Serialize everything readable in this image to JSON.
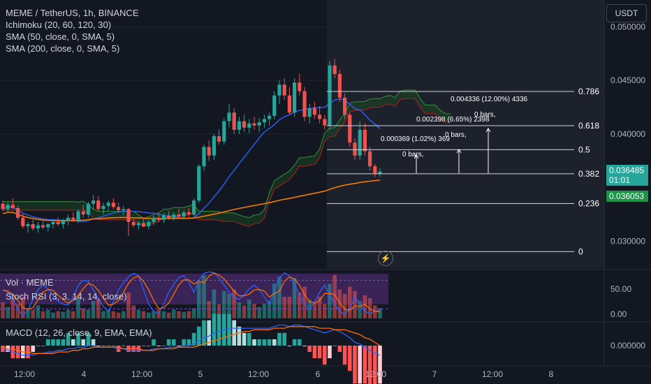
{
  "legend": {
    "title": "MEME / TetherUS, 1h, BINANCE",
    "indicators": [
      "Ichimoku (20, 60, 120, 30)",
      "SMA (50, close, 0, SMA, 5)",
      "SMA (200, close, 0, SMA, 5)"
    ]
  },
  "currency_button": "USDT",
  "colors": {
    "bg": "#131722",
    "up": "#26a69a",
    "down": "#ef5350",
    "sma50": "#2962ff",
    "sma200": "#f57c00",
    "axis_text": "#b2b5be",
    "rsi_band": "#4a2a6e"
  },
  "price_axis": {
    "ticks": [
      "0.050000",
      "0.045000",
      "0.040000",
      "0.030000"
    ]
  },
  "time_axis": {
    "ticks": [
      "12:00",
      "4",
      "12:00",
      "5",
      "12:00",
      "6",
      "12:00",
      "7",
      "12:00",
      "8"
    ]
  },
  "price_tags": {
    "last_price": "0.036485",
    "countdown": "01:01",
    "ichimoku_price": "0.036053"
  },
  "fib": {
    "levels": [
      {
        "ratio": "0.786",
        "price": 0.04397
      },
      {
        "ratio": "0.618",
        "price": 0.04078
      },
      {
        "ratio": "0.5",
        "price": 0.03854
      },
      {
        "ratio": "0.382",
        "price": 0.0363
      },
      {
        "ratio": "0.236",
        "price": 0.03352
      },
      {
        "ratio": "0",
        "price": 0.02904
      }
    ]
  },
  "measurements": [
    {
      "label": "0.000369 (1.02%) 369",
      "bars": "0 bars,"
    },
    {
      "label": "0.002398 (6.65%) 2398",
      "bars": "0 bars,"
    },
    {
      "label": "0.004336 (12.00%) 4336",
      "bars": "0 bars,"
    }
  ],
  "panes": {
    "volume_label": "Vol · MEME",
    "rsi_label": "Stoch RSI (3, 3, 14, 14, close)",
    "rsi_ticks": [
      "50.00",
      "0.00"
    ],
    "macd_label": "MACD (12, 26, close, 9, EMA, EMA)",
    "macd_ticks": [
      "0.000000"
    ]
  },
  "chart_data": {
    "type": "candlestick",
    "title": "MEME / TetherUS, 1h, BINANCE",
    "ylim": [
      0.0275,
      0.0525
    ],
    "candles": [
      [
        0.0335,
        0.0338,
        0.0328,
        0.033
      ],
      [
        0.033,
        0.0336,
        0.0327,
        0.0334
      ],
      [
        0.0334,
        0.034,
        0.033,
        0.0331
      ],
      [
        0.0331,
        0.0333,
        0.032,
        0.0322
      ],
      [
        0.0322,
        0.0326,
        0.0312,
        0.0314
      ],
      [
        0.0314,
        0.0318,
        0.0308,
        0.0316
      ],
      [
        0.0316,
        0.032,
        0.031,
        0.0312
      ],
      [
        0.0312,
        0.0318,
        0.0308,
        0.0315
      ],
      [
        0.0315,
        0.0319,
        0.0311,
        0.0313
      ],
      [
        0.0313,
        0.0317,
        0.0309,
        0.0316
      ],
      [
        0.0316,
        0.032,
        0.0312,
        0.0318
      ],
      [
        0.0318,
        0.0322,
        0.0314,
        0.0316
      ],
      [
        0.0316,
        0.0321,
        0.0312,
        0.0319
      ],
      [
        0.0319,
        0.0325,
        0.0315,
        0.0322
      ],
      [
        0.0322,
        0.0327,
        0.0318,
        0.032
      ],
      [
        0.032,
        0.033,
        0.0317,
        0.0328
      ],
      [
        0.0328,
        0.0334,
        0.0322,
        0.0325
      ],
      [
        0.0325,
        0.0337,
        0.0322,
        0.0335
      ],
      [
        0.0335,
        0.0343,
        0.033,
        0.0338
      ],
      [
        0.0338,
        0.0342,
        0.0328,
        0.033
      ],
      [
        0.033,
        0.0336,
        0.0325,
        0.0333
      ],
      [
        0.0333,
        0.0338,
        0.0328,
        0.0336
      ],
      [
        0.0336,
        0.034,
        0.033,
        0.0332
      ],
      [
        0.0332,
        0.0336,
        0.0327,
        0.0329
      ],
      [
        0.0329,
        0.0333,
        0.0324,
        0.033
      ],
      [
        0.033,
        0.0331,
        0.0305,
        0.0318
      ],
      [
        0.0318,
        0.0321,
        0.0313,
        0.0315
      ],
      [
        0.0315,
        0.0319,
        0.0311,
        0.0317
      ],
      [
        0.0317,
        0.0321,
        0.0313,
        0.0314
      ],
      [
        0.0314,
        0.032,
        0.0311,
        0.0318
      ],
      [
        0.0318,
        0.0324,
        0.0315,
        0.0322
      ],
      [
        0.0322,
        0.0326,
        0.0318,
        0.032
      ],
      [
        0.032,
        0.0326,
        0.0317,
        0.0324
      ],
      [
        0.0324,
        0.0328,
        0.032,
        0.0322
      ],
      [
        0.0322,
        0.0327,
        0.0319,
        0.0325
      ],
      [
        0.0325,
        0.033,
        0.0321,
        0.0323
      ],
      [
        0.0323,
        0.0329,
        0.032,
        0.0327
      ],
      [
        0.0327,
        0.0331,
        0.0322,
        0.0325
      ],
      [
        0.0325,
        0.034,
        0.0323,
        0.0338
      ],
      [
        0.0338,
        0.0372,
        0.0336,
        0.037
      ],
      [
        0.037,
        0.039,
        0.0366,
        0.0388
      ],
      [
        0.0388,
        0.0394,
        0.0375,
        0.038
      ],
      [
        0.038,
        0.04,
        0.0376,
        0.0398
      ],
      [
        0.0398,
        0.0404,
        0.039,
        0.0393
      ],
      [
        0.0393,
        0.0415,
        0.039,
        0.0412
      ],
      [
        0.0412,
        0.0428,
        0.0406,
        0.042
      ],
      [
        0.042,
        0.0424,
        0.04,
        0.0404
      ],
      [
        0.0404,
        0.0416,
        0.04,
        0.0412
      ],
      [
        0.0412,
        0.0418,
        0.0402,
        0.0406
      ],
      [
        0.0406,
        0.0414,
        0.0401,
        0.041
      ],
      [
        0.041,
        0.0416,
        0.0404,
        0.0408
      ],
      [
        0.0408,
        0.0415,
        0.0402,
        0.0411
      ],
      [
        0.0411,
        0.0418,
        0.0406,
        0.0414
      ],
      [
        0.0414,
        0.042,
        0.0408,
        0.0417
      ],
      [
        0.0417,
        0.044,
        0.0414,
        0.0436
      ],
      [
        0.0436,
        0.045,
        0.0428,
        0.0446
      ],
      [
        0.0446,
        0.0452,
        0.0432,
        0.0436
      ],
      [
        0.0436,
        0.0444,
        0.0418,
        0.042
      ],
      [
        0.042,
        0.0452,
        0.0416,
        0.0448
      ],
      [
        0.0448,
        0.0456,
        0.0436,
        0.044
      ],
      [
        0.044,
        0.0444,
        0.0412,
        0.0416
      ],
      [
        0.0416,
        0.0428,
        0.041,
        0.0424
      ],
      [
        0.0424,
        0.043,
        0.0414,
        0.0418
      ],
      [
        0.0418,
        0.0426,
        0.041,
        0.0414
      ],
      [
        0.0414,
        0.0418,
        0.0404,
        0.0408
      ],
      [
        0.0408,
        0.0468,
        0.0404,
        0.0464
      ],
      [
        0.0464,
        0.047,
        0.0452,
        0.0456
      ],
      [
        0.0456,
        0.046,
        0.043,
        0.0434
      ],
      [
        0.0434,
        0.0438,
        0.0414,
        0.0418
      ],
      [
        0.0418,
        0.042,
        0.0388,
        0.0392
      ],
      [
        0.0392,
        0.0396,
        0.0376,
        0.038
      ],
      [
        0.038,
        0.0412,
        0.0376,
        0.0404
      ],
      [
        0.0404,
        0.041,
        0.038,
        0.0384
      ],
      [
        0.0384,
        0.0388,
        0.0366,
        0.037
      ],
      [
        0.037,
        0.0372,
        0.036,
        0.0363
      ],
      [
        0.0363,
        0.0368,
        0.036,
        0.0365
      ]
    ],
    "volume": [
      22,
      16,
      26,
      20,
      30,
      14,
      12,
      18,
      10,
      12,
      8,
      10,
      9,
      12,
      10,
      28,
      14,
      12,
      24,
      26,
      10,
      12,
      10,
      8,
      10,
      36,
      18,
      12,
      10,
      8,
      10,
      12,
      10,
      8,
      12,
      10,
      9,
      10,
      14,
      50,
      60,
      24,
      40,
      20,
      38,
      34,
      40,
      22,
      18,
      26,
      20,
      16,
      20,
      24,
      48,
      58,
      30,
      30,
      56,
      36,
      44,
      26,
      22,
      30,
      20,
      48,
      60,
      40,
      34,
      44,
      38,
      24,
      32,
      28,
      18,
      14
    ],
    "rsi": [
      60,
      55,
      40,
      20,
      5,
      18,
      40,
      60,
      70,
      62,
      48,
      36,
      30,
      28,
      45,
      70,
      80,
      78,
      60,
      40,
      25,
      15,
      35,
      60,
      75,
      88,
      95,
      90,
      60,
      30,
      15,
      10,
      30,
      55,
      72,
      86,
      90,
      76,
      55,
      80,
      95,
      98,
      96,
      85,
      70,
      55,
      45,
      40,
      50,
      62,
      70,
      60,
      45,
      30,
      60,
      85,
      96,
      90,
      70,
      50,
      30,
      20,
      35,
      55,
      70,
      50,
      30,
      15,
      8,
      20,
      45,
      30,
      15,
      10,
      14,
      18
    ],
    "macd": [
      -0.0002,
      -0.0003,
      -0.0004,
      -0.0005,
      -0.0006,
      -0.0006,
      -0.0006,
      -0.0005,
      -0.0005,
      -0.0004,
      -0.0004,
      -0.0003,
      -0.0003,
      -0.0002,
      -0.0002,
      -0.0001,
      -0.0001,
      0.0,
      0.0,
      -0.0001,
      -0.0001,
      -0.0001,
      -0.0001,
      -0.0002,
      -0.0002,
      -0.0003,
      -0.0003,
      -0.0003,
      -0.0003,
      -0.0003,
      -0.0002,
      -0.0002,
      -0.0002,
      -0.0001,
      -0.0001,
      -0.0001,
      0.0,
      0.0,
      0.0001,
      0.0003,
      0.0005,
      0.0006,
      0.0008,
      0.0009,
      0.001,
      0.0011,
      0.0011,
      0.0011,
      0.0011,
      0.0011,
      0.0011,
      0.0011,
      0.0011,
      0.0011,
      0.0012,
      0.0013,
      0.0013,
      0.0012,
      0.0013,
      0.0013,
      0.0012,
      0.0011,
      0.001,
      0.0009,
      0.0008,
      0.0009,
      0.001,
      0.0009,
      0.0007,
      0.0005,
      0.0002,
      0.0001,
      -0.0001,
      -0.0003,
      -0.0005,
      -0.0006
    ],
    "macd_signal": [
      -0.0001,
      -0.0002,
      -0.0002,
      -0.0003,
      -0.0004,
      -0.0004,
      -0.0005,
      -0.0005,
      -0.0005,
      -0.0005,
      -0.0005,
      -0.0004,
      -0.0004,
      -0.0004,
      -0.0003,
      -0.0003,
      -0.0002,
      -0.0002,
      -0.0001,
      -0.0001,
      -0.0001,
      -0.0001,
      -0.0001,
      -0.0001,
      -0.0002,
      -0.0002,
      -0.0002,
      -0.0002,
      -0.0003,
      -0.0003,
      -0.0003,
      -0.0002,
      -0.0002,
      -0.0002,
      -0.0002,
      -0.0001,
      -0.0001,
      -0.0001,
      -0.0001,
      0.0,
      0.0001,
      0.0002,
      0.0003,
      0.0004,
      0.0005,
      0.0006,
      0.0007,
      0.0008,
      0.0009,
      0.0009,
      0.001,
      0.001,
      0.001,
      0.001,
      0.0011,
      0.0011,
      0.0011,
      0.0012,
      0.0012,
      0.0012,
      0.0012,
      0.0012,
      0.0012,
      0.0011,
      0.0011,
      0.0011,
      0.001,
      0.001,
      0.001,
      0.0009,
      0.0008,
      0.0007,
      0.0005,
      0.0004,
      0.0002,
      0.0
    ]
  }
}
